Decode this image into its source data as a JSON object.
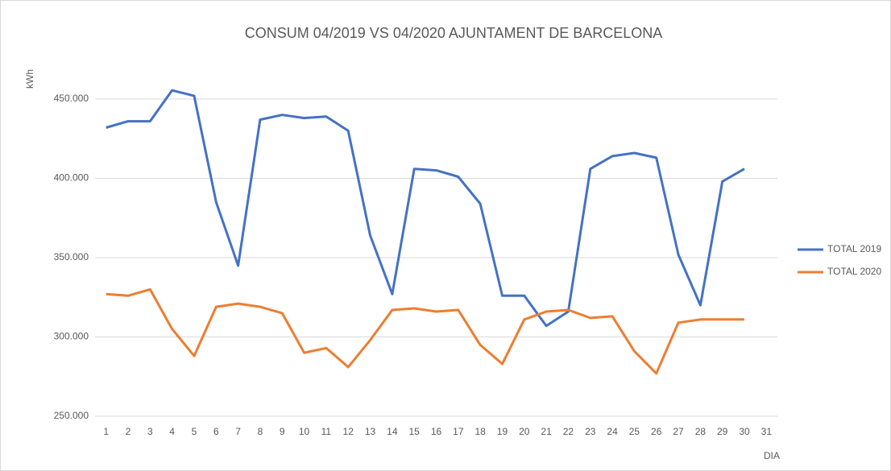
{
  "chart_data": {
    "type": "line",
    "title": "CONSUM 04/2019 VS 04/2020 AJUNTAMENT DE BARCELONA",
    "y_label": "kWh",
    "x_label": "DIA",
    "categories": [
      "1",
      "2",
      "3",
      "4",
      "5",
      "6",
      "7",
      "8",
      "9",
      "10",
      "11",
      "12",
      "13",
      "14",
      "15",
      "16",
      "17",
      "18",
      "19",
      "20",
      "21",
      "22",
      "23",
      "24",
      "25",
      "26",
      "27",
      "28",
      "29",
      "30",
      "31"
    ],
    "series": [
      {
        "name": "TOTAL 2019",
        "color": "#4472c4",
        "values": [
          432000,
          436000,
          436000,
          455500,
          452000,
          385000,
          345000,
          437000,
          440000,
          438000,
          439000,
          430000,
          364000,
          327000,
          406000,
          405000,
          401000,
          384000,
          326000,
          326000,
          307000,
          316000,
          406000,
          414000,
          416000,
          413000,
          352000,
          320000,
          398000,
          406000,
          null
        ]
      },
      {
        "name": "TOTAL 2020",
        "color": "#ed7d31",
        "values": [
          327000,
          326000,
          330000,
          305000,
          288000,
          319000,
          321000,
          319000,
          315000,
          290000,
          293000,
          281000,
          298000,
          317000,
          318000,
          316000,
          317000,
          295000,
          283000,
          311000,
          316000,
          317000,
          312000,
          313000,
          291000,
          277000,
          309000,
          311000,
          311000,
          311000,
          null
        ]
      }
    ],
    "ylim": [
      250000,
      460000
    ],
    "yticks": [
      {
        "value": 250000,
        "label": "250.000"
      },
      {
        "value": 300000,
        "label": "300.000"
      },
      {
        "value": 350000,
        "label": "350.000"
      },
      {
        "value": 400000,
        "label": "400.000"
      },
      {
        "value": 450000,
        "label": "450.000"
      }
    ],
    "grid": true,
    "legend": "right"
  }
}
